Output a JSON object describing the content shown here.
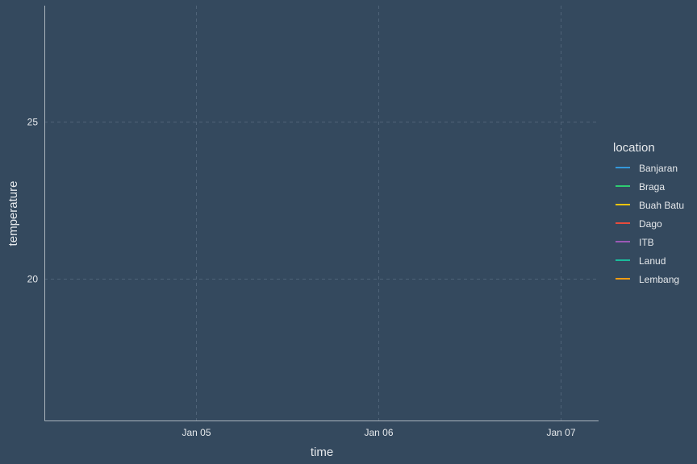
{
  "chart_data": {
    "type": "line",
    "title": "",
    "xlabel": "time",
    "ylabel": "temperature",
    "x_ticks": [
      "Jan 05",
      "Jan 06",
      "Jan 07"
    ],
    "x_range": [
      "2021-01-04 04:00",
      "2021-01-07 05:00"
    ],
    "x_tick_values": [
      "2021-01-05",
      "2021-01-06",
      "2021-01-07"
    ],
    "y_ticks": [
      20,
      25
    ],
    "ylim": [
      15.5,
      28.7
    ],
    "grid": true,
    "grid_style": "dashed",
    "legend": {
      "title": "location",
      "position": "right",
      "entries": [
        {
          "name": "Banjaran",
          "color": "#3498db"
        },
        {
          "name": "Braga",
          "color": "#2ecc71"
        },
        {
          "name": "Buah Batu",
          "color": "#f1c40f"
        },
        {
          "name": "Dago",
          "color": "#e74c3c"
        },
        {
          "name": "ITB",
          "color": "#9b59b6"
        },
        {
          "name": "Lanud",
          "color": "#1abc9c"
        },
        {
          "name": "Lembang",
          "color": "#f39c12"
        }
      ]
    },
    "series": [
      {
        "name": "Banjaran",
        "values": []
      },
      {
        "name": "Braga",
        "values": []
      },
      {
        "name": "Buah Batu",
        "values": []
      },
      {
        "name": "Dago",
        "values": []
      },
      {
        "name": "ITB",
        "values": []
      },
      {
        "name": "Lanud",
        "values": []
      },
      {
        "name": "Lembang",
        "values": []
      }
    ]
  },
  "colors": {
    "background": "#34495e",
    "text": "#e6e9ec",
    "axis": "#aab4bd",
    "grid": "#4f6378"
  }
}
